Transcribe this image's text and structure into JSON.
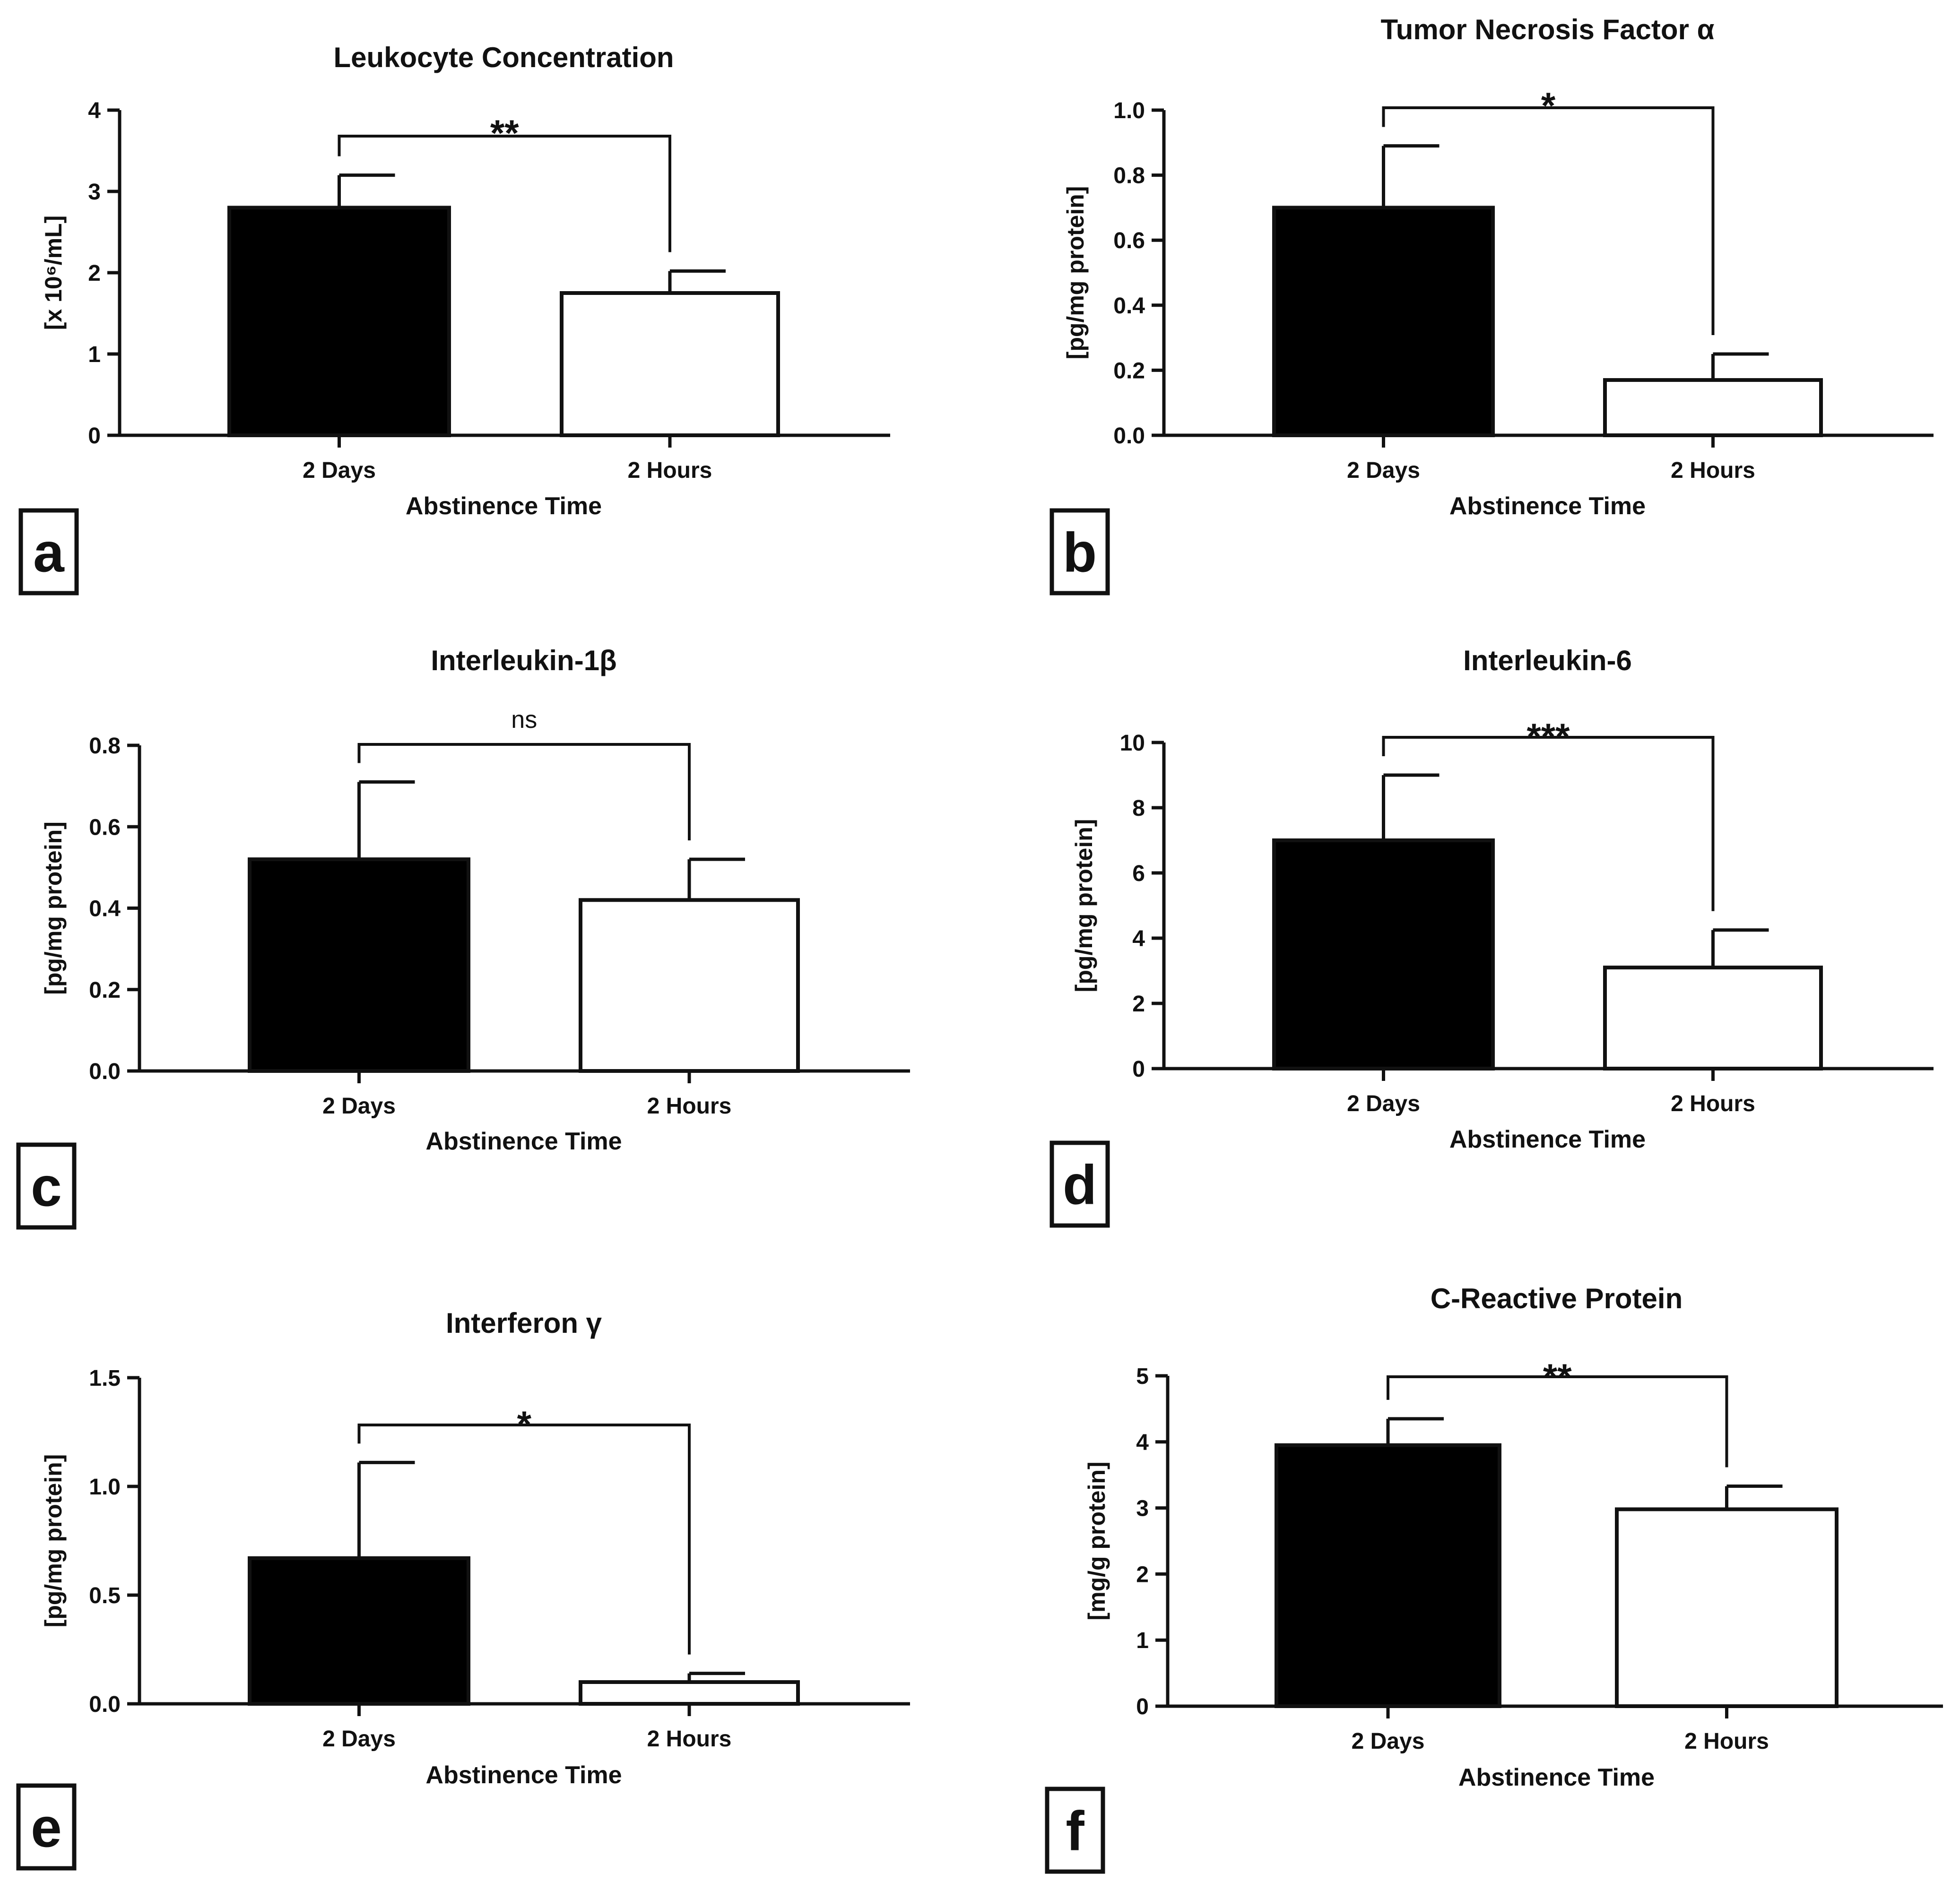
{
  "colors": {
    "ink": "#111111",
    "bar_dark": "#000000",
    "bar_light": "#ffffff"
  },
  "chart_data": [
    {
      "panel": "a",
      "type": "bar",
      "title": "Leukocyte Concentration",
      "xlabel": "Abstinence Time",
      "ylabel": "[x 10⁶/mL]",
      "categories": [
        "2 Days",
        "2 Hours"
      ],
      "values": [
        2.8,
        1.75
      ],
      "errors": [
        0.4,
        0.27
      ],
      "ylim": [
        0,
        4
      ],
      "yticks": [
        "0",
        "1",
        "2",
        "3",
        "4"
      ],
      "significance": "**"
    },
    {
      "panel": "b",
      "type": "bar",
      "title": "Tumor Necrosis Factor α",
      "xlabel": "Abstinence Time",
      "ylabel": "[pg/mg protein]",
      "categories": [
        "2 Days",
        "2 Hours"
      ],
      "values": [
        0.7,
        0.17
      ],
      "errors": [
        0.19,
        0.08
      ],
      "ylim": [
        0,
        1.0
      ],
      "yticks": [
        "0.0",
        "0.2",
        "0.4",
        "0.6",
        "0.8",
        "1.0"
      ],
      "significance": "*"
    },
    {
      "panel": "c",
      "type": "bar",
      "title": "Interleukin-1β",
      "xlabel": "Abstinence Time",
      "ylabel": "[pg/mg protein]",
      "categories": [
        "2 Days",
        "2 Hours"
      ],
      "values": [
        0.52,
        0.42
      ],
      "errors": [
        0.19,
        0.1
      ],
      "ylim": [
        0,
        0.8
      ],
      "yticks": [
        "0.0",
        "0.2",
        "0.4",
        "0.6",
        "0.8"
      ],
      "significance": "ns"
    },
    {
      "panel": "d",
      "type": "bar",
      "title": "Interleukin-6",
      "xlabel": "Abstinence Time",
      "ylabel": "[pg/mg protein]",
      "categories": [
        "2 Days",
        "2 Hours"
      ],
      "values": [
        7.0,
        3.1
      ],
      "errors": [
        2.0,
        1.15
      ],
      "ylim": [
        0,
        10
      ],
      "yticks": [
        "0",
        "2",
        "4",
        "6",
        "8",
        "10"
      ],
      "significance": "***"
    },
    {
      "panel": "e",
      "type": "bar",
      "title": "Interferon γ",
      "xlabel": "Abstinence Time",
      "ylabel": "[pg/mg protein]",
      "categories": [
        "2 Days",
        "2 Hours"
      ],
      "values": [
        0.67,
        0.1
      ],
      "errors": [
        0.44,
        0.04
      ],
      "ylim": [
        0,
        1.5
      ],
      "yticks": [
        "0.0",
        "0.5",
        "1.0",
        "1.5"
      ],
      "significance": "*"
    },
    {
      "panel": "f",
      "type": "bar",
      "title": "C-Reactive Protein",
      "xlabel": "Abstinence Time",
      "ylabel": "[mg/g protein]",
      "categories": [
        "2 Days",
        "2 Hours"
      ],
      "values": [
        3.95,
        2.98
      ],
      "errors": [
        0.4,
        0.35
      ],
      "ylim": [
        0,
        5
      ],
      "yticks": [
        "0",
        "1",
        "2",
        "3",
        "4",
        "5"
      ],
      "significance": "**"
    }
  ]
}
